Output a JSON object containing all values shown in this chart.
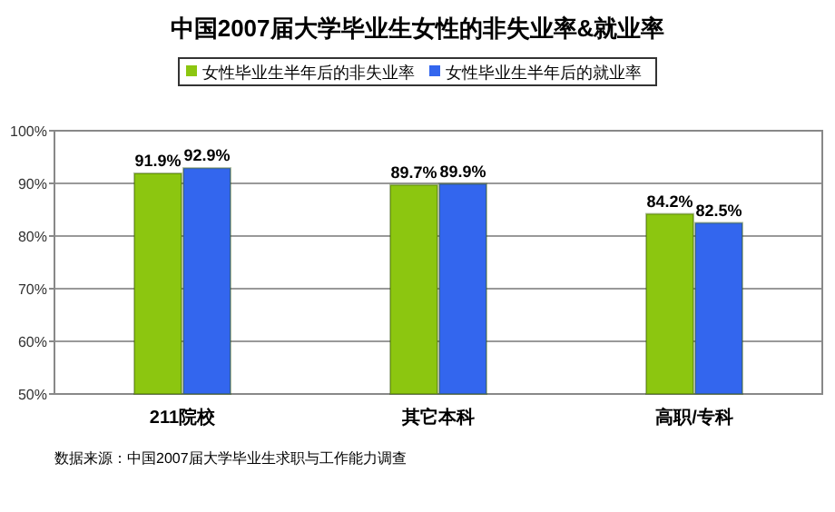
{
  "chart_data": {
    "type": "bar",
    "title": "中国2007届大学毕业生女性的非失业率&就业率",
    "categories": [
      "211院校",
      "其它本科",
      "高职/专科"
    ],
    "series": [
      {
        "name": "女性毕业生半年后的非失业率",
        "color": "#8cc610",
        "values": [
          91.9,
          89.7,
          84.2
        ],
        "value_labels": [
          "91.9%",
          "89.7%",
          "84.2%"
        ]
      },
      {
        "name": "女性毕业生半年后的就业率",
        "color": "#3366ee",
        "values": [
          92.9,
          89.9,
          82.5
        ],
        "value_labels": [
          "92.9%",
          "89.9%",
          "82.5%"
        ]
      }
    ],
    "ylim": [
      50,
      100
    ],
    "yticks": [
      {
        "value": 50,
        "label": "50%"
      },
      {
        "value": 60,
        "label": "60%"
      },
      {
        "value": 70,
        "label": "70%"
      },
      {
        "value": 80,
        "label": "80%"
      },
      {
        "value": 90,
        "label": "90%"
      },
      {
        "value": 100,
        "label": "100%"
      }
    ],
    "grid": "y",
    "legend": "top",
    "annotations": [
      "数据来源：中国2007届大学毕业生求职与工作能力调查"
    ]
  }
}
